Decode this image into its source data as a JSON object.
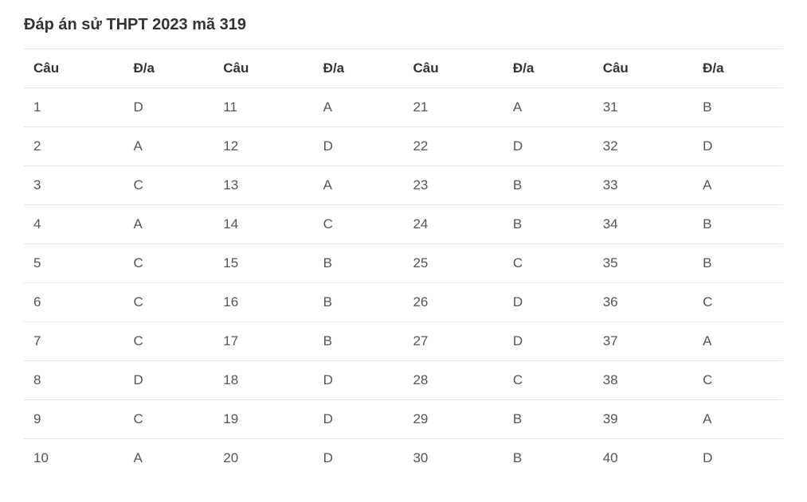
{
  "title": "Đáp án sử THPT 2023 mã 319",
  "table": {
    "type": "table",
    "background_color": "#ffffff",
    "border_color": "#e5e5e5",
    "header_text_color": "#333333",
    "cell_text_color": "#555555",
    "font_size": 17,
    "header_font_weight": "bold",
    "columns": [
      "Câu",
      "Đ/a",
      "Câu",
      "Đ/a",
      "Câu",
      "Đ/a",
      "Câu",
      "Đ/a"
    ],
    "rows": [
      [
        "1",
        "D",
        "11",
        "A",
        "21",
        "A",
        "31",
        "B"
      ],
      [
        "2",
        "A",
        "12",
        "D",
        "22",
        "D",
        "32",
        "D"
      ],
      [
        "3",
        "C",
        "13",
        "A",
        "23",
        "B",
        "33",
        "A"
      ],
      [
        "4",
        "A",
        "14",
        "C",
        "24",
        "B",
        "34",
        "B"
      ],
      [
        "5",
        "C",
        "15",
        "B",
        "25",
        "C",
        "35",
        "B"
      ],
      [
        "6",
        "C",
        "16",
        "B",
        "26",
        "D",
        "36",
        "C"
      ],
      [
        "7",
        "C",
        "17",
        "B",
        "27",
        "D",
        "37",
        "A"
      ],
      [
        "8",
        "D",
        "18",
        "D",
        "28",
        "C",
        "38",
        "C"
      ],
      [
        "9",
        "C",
        "19",
        "D",
        "29",
        "B",
        "39",
        "A"
      ],
      [
        "10",
        "A",
        "20",
        "D",
        "30",
        "B",
        "40",
        "D"
      ]
    ]
  }
}
